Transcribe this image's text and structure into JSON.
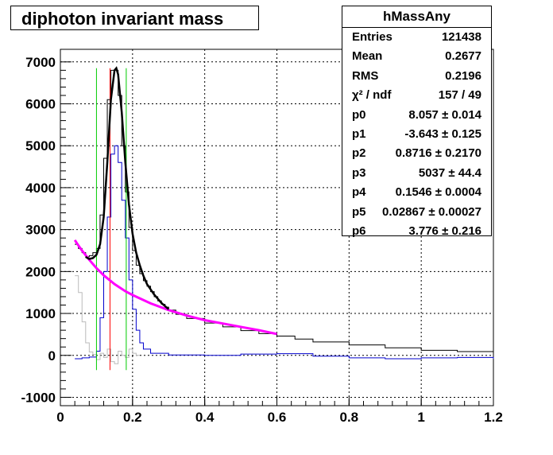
{
  "window": {
    "title": "diphoton invariant mass"
  },
  "stats_box": {
    "name": "hMassAny",
    "rows": [
      {
        "key": "Entries",
        "value": "121438"
      },
      {
        "key": "Mean",
        "value": "0.2677"
      },
      {
        "key": "RMS",
        "value": "0.2196"
      },
      {
        "key": "χ² / ndf",
        "value": "157 / 49"
      },
      {
        "key": "p0",
        "value": "8.057 ± 0.014"
      },
      {
        "key": "p1",
        "value": "-3.643 ± 0.125"
      },
      {
        "key": "p2",
        "value": "0.8716 ± 0.2170"
      },
      {
        "key": "p3",
        "value": "5037 ± 44.4"
      },
      {
        "key": "p4",
        "value": "0.1546 ± 0.0004"
      },
      {
        "key": "p5",
        "value": "0.02867 ± 0.00027"
      },
      {
        "key": "p6",
        "value": "3.776 ± 0.216"
      }
    ]
  },
  "chart_data": {
    "type": "line",
    "title": "diphoton invariant mass",
    "xlabel": "",
    "ylabel": "",
    "xlim": [
      0,
      1.2
    ],
    "ylim": [
      -1200,
      7300
    ],
    "grid": true,
    "x_ticks": [
      "0",
      "0.2",
      "0.4",
      "0.6",
      "0.8",
      "1",
      "1.2"
    ],
    "y_ticks": [
      "-1000",
      "0",
      "1000",
      "2000",
      "3000",
      "4000",
      "5000",
      "6000",
      "7000"
    ],
    "colors": {
      "total": "#000000",
      "signal": "#0000cc",
      "background_sub": "#bbbbbb",
      "fit": "#000000",
      "background_fit": "#ff00ff",
      "peak_line": "#ff0000",
      "window_lines": "#00cc00"
    },
    "vertical_lines": {
      "peak": 0.1375,
      "window": [
        0.1,
        0.1825
      ]
    },
    "series": [
      {
        "key": "total",
        "style": "step",
        "x": [
          0.04,
          0.05,
          0.06,
          0.07,
          0.08,
          0.09,
          0.1,
          0.11,
          0.12,
          0.13,
          0.14,
          0.15,
          0.16,
          0.17,
          0.18,
          0.19,
          0.2,
          0.21,
          0.22,
          0.23,
          0.24,
          0.25,
          0.26,
          0.27,
          0.28,
          0.29,
          0.3,
          0.32,
          0.35,
          0.4,
          0.45,
          0.5,
          0.55,
          0.6,
          0.65,
          0.7,
          0.8,
          0.9,
          1.0,
          1.1,
          1.2
        ],
        "y": [
          2650,
          2550,
          2450,
          2350,
          2380,
          2450,
          2550,
          3350,
          4700,
          6100,
          6800,
          6800,
          6200,
          5000,
          3900,
          3050,
          2500,
          2150,
          1950,
          1780,
          1650,
          1520,
          1400,
          1300,
          1220,
          1150,
          1080,
          980,
          880,
          770,
          680,
          590,
          520,
          460,
          390,
          320,
          250,
          180,
          120,
          90,
          80
        ]
      },
      {
        "key": "signal",
        "style": "step",
        "x": [
          0.04,
          0.06,
          0.08,
          0.1,
          0.11,
          0.12,
          0.13,
          0.14,
          0.15,
          0.16,
          0.17,
          0.18,
          0.19,
          0.2,
          0.21,
          0.22,
          0.23,
          0.25,
          0.3,
          0.4,
          0.5,
          0.6,
          0.7,
          0.8,
          0.9,
          1.0,
          1.1,
          1.2
        ],
        "y": [
          -80,
          -60,
          -40,
          100,
          900,
          2000,
          3300,
          4800,
          5000,
          4600,
          3700,
          2800,
          1800,
          1100,
          600,
          300,
          150,
          50,
          10,
          0,
          30,
          40,
          -20,
          -60,
          -80,
          -60,
          -50,
          -80
        ]
      },
      {
        "key": "background_sub",
        "style": "step",
        "x": [
          0.04,
          0.05,
          0.06,
          0.07,
          0.08,
          0.09,
          0.1,
          0.11,
          0.12,
          0.13,
          0.14,
          0.15,
          0.16,
          0.17,
          0.18,
          0.19,
          0.2,
          0.21,
          0.22
        ],
        "y": [
          1900,
          1500,
          800,
          300,
          80,
          20,
          -100,
          50,
          -50,
          150,
          -150,
          -200,
          100,
          0,
          -50,
          150,
          50,
          0,
          0
        ]
      },
      {
        "key": "fit",
        "style": "curve",
        "x": [
          0.07,
          0.08,
          0.09,
          0.1,
          0.11,
          0.12,
          0.13,
          0.14,
          0.15,
          0.155,
          0.16,
          0.17,
          0.18,
          0.19,
          0.2,
          0.21,
          0.22,
          0.23,
          0.24,
          0.26,
          0.28,
          0.3
        ],
        "y": [
          2350,
          2300,
          2320,
          2400,
          2650,
          3300,
          4600,
          6100,
          6800,
          6850,
          6700,
          5800,
          4600,
          3600,
          2900,
          2450,
          2150,
          1900,
          1700,
          1450,
          1250,
          1100
        ]
      },
      {
        "key": "background_fit",
        "style": "curve",
        "x": [
          0.04,
          0.05,
          0.06,
          0.08,
          0.1,
          0.12,
          0.15,
          0.18,
          0.2,
          0.25,
          0.3,
          0.35,
          0.4,
          0.45,
          0.5,
          0.55,
          0.6
        ],
        "y": [
          2750,
          2620,
          2500,
          2280,
          2080,
          1910,
          1700,
          1530,
          1440,
          1240,
          1080,
          950,
          840,
          760,
          680,
          600,
          510
        ]
      }
    ]
  }
}
